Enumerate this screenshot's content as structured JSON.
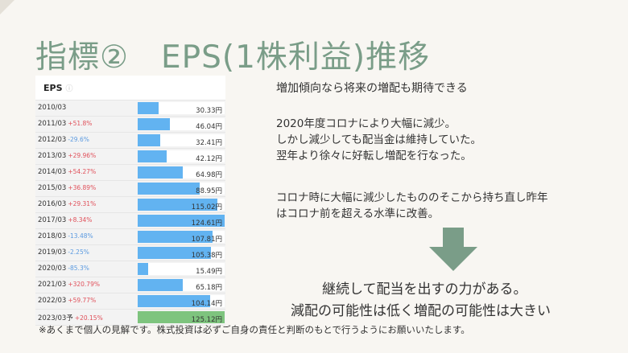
{
  "slide_title": "指標②　EPS(1株利益)推移",
  "table": {
    "title": "EPS",
    "info_icon": "info-circle-icon",
    "max_value": 125.12,
    "rows": [
      {
        "year": "2010/03",
        "growth": "",
        "value": 30.33,
        "value_text": "30.33円",
        "forecast": false
      },
      {
        "year": "2011/03",
        "growth": "+51.8%",
        "value": 46.04,
        "value_text": "46.04円",
        "forecast": false
      },
      {
        "year": "2012/03",
        "growth": "-29.6%",
        "value": 32.41,
        "value_text": "32.41円",
        "forecast": false
      },
      {
        "year": "2013/03",
        "growth": "+29.96%",
        "value": 42.12,
        "value_text": "42.12円",
        "forecast": false
      },
      {
        "year": "2014/03",
        "growth": "+54.27%",
        "value": 64.98,
        "value_text": "64.98円",
        "forecast": false
      },
      {
        "year": "2015/03",
        "growth": "+36.89%",
        "value": 88.95,
        "value_text": "88.95円",
        "forecast": false
      },
      {
        "year": "2016/03",
        "growth": "+29.31%",
        "value": 115.02,
        "value_text": "115.02円",
        "forecast": false
      },
      {
        "year": "2017/03",
        "growth": "+8.34%",
        "value": 124.61,
        "value_text": "124.61円",
        "forecast": false
      },
      {
        "year": "2018/03",
        "growth": "-13.48%",
        "value": 107.81,
        "value_text": "107.81円",
        "forecast": false
      },
      {
        "year": "2019/03",
        "growth": "-2.25%",
        "value": 105.38,
        "value_text": "105.38円",
        "forecast": false
      },
      {
        "year": "2020/03",
        "growth": "-85.3%",
        "value": 15.49,
        "value_text": "15.49円",
        "forecast": false
      },
      {
        "year": "2021/03",
        "growth": "+320.79%",
        "value": 65.18,
        "value_text": "65.18円",
        "forecast": false
      },
      {
        "year": "2022/03",
        "growth": "+59.77%",
        "value": 104.14,
        "value_text": "104.14円",
        "forecast": false
      },
      {
        "year": "2023/03予",
        "growth": "+20.15%",
        "value": 125.12,
        "value_text": "125.12円",
        "forecast": true
      }
    ]
  },
  "colors": {
    "bar": "#62b3f1",
    "forecast_bar": "#7ec47e",
    "positive": "#e0505a",
    "negative": "#5b9ae0",
    "title": "#7a9d88",
    "arrow": "#7a9d88"
  },
  "text": {
    "subtitle": "増加傾向なら将来の増配も期待できる",
    "para1": [
      "2020年度コロナにより大幅に減少。",
      "しかし減少しても配当金は維持していた。",
      "翌年より徐々に好転し増配を行なった。"
    ],
    "para2": [
      "コロナ時に大幅に減少したもののそこから持ち直し昨年",
      "はコロナ前を超える水準に改善。"
    ]
  },
  "arrow_icon": "down-arrow-icon",
  "conclusion": [
    "継続して配当を出すの力がある。",
    "減配の可能性は低く増配の可能性は大きい"
  ],
  "disclaimer": "※あくまで個人の見解です。株式投資は必ずご自身の責任と判断のもとで行うようにお願いいたします。"
}
